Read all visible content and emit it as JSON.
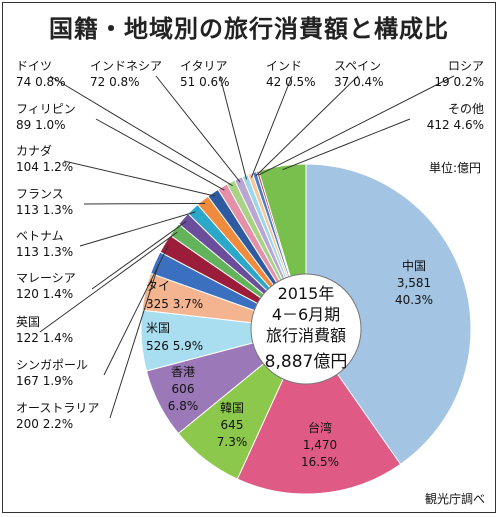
{
  "unit_label": "単位:億円",
  "source_label": "観光庁調べ",
  "chart_data": {
    "type": "pie",
    "title": "国籍・地域別の旅行消費額と構成比",
    "center_text": [
      "2015年",
      "4－6月期",
      "旅行消費額",
      "8,887億円"
    ],
    "slices": [
      {
        "label": "中国",
        "value": 3581,
        "value_text": "3,581",
        "pct_text": "40.3%",
        "color": "#a3c4e3"
      },
      {
        "label": "台湾",
        "value": 1470,
        "value_text": "1,470",
        "pct_text": "16.5%",
        "color": "#e05a86"
      },
      {
        "label": "韓国",
        "value": 645,
        "value_text": "645",
        "pct_text": "7.3%",
        "color": "#8cc84b"
      },
      {
        "label": "香港",
        "value": 606,
        "value_text": "606",
        "pct_text": "6.8%",
        "color": "#9b78b8"
      },
      {
        "label": "米国",
        "value": 526,
        "value_text": "526",
        "pct_text": "5.9%",
        "color": "#a9def1"
      },
      {
        "label": "タイ",
        "value": 325,
        "value_text": "325",
        "pct_text": "3.7%",
        "color": "#f4b48f"
      },
      {
        "label": "オーストラリア",
        "value": 200,
        "value_text": "200",
        "pct_text": "2.2%",
        "color": "#3b6fc0"
      },
      {
        "label": "シンガポール",
        "value": 167,
        "value_text": "167",
        "pct_text": "1.9%",
        "color": "#9c1d3a"
      },
      {
        "label": "英国",
        "value": 122,
        "value_text": "122",
        "pct_text": "1.4%",
        "color": "#63b35a"
      },
      {
        "label": "マレーシア",
        "value": 120,
        "value_text": "120",
        "pct_text": "1.4%",
        "color": "#6a4d9b"
      },
      {
        "label": "ベトナム",
        "value": 113,
        "value_text": "113",
        "pct_text": "1.3%",
        "color": "#2aa7c9"
      },
      {
        "label": "フランス",
        "value": 113,
        "value_text": "113",
        "pct_text": "1.3%",
        "color": "#f08a3c"
      },
      {
        "label": "カナダ",
        "value": 104,
        "value_text": "104",
        "pct_text": "1.2%",
        "color": "#2d5aa0"
      },
      {
        "label": "フィリピン",
        "value": 89,
        "value_text": "89",
        "pct_text": "1.0%",
        "color": "#e58fa9"
      },
      {
        "label": "ドイツ",
        "value": 74,
        "value_text": "74",
        "pct_text": "0.8%",
        "color": "#a8d384"
      },
      {
        "label": "インドネシア",
        "value": 72,
        "value_text": "72",
        "pct_text": "0.8%",
        "color": "#b9a6d3"
      },
      {
        "label": "イタリア",
        "value": 51,
        "value_text": "51",
        "pct_text": "0.6%",
        "color": "#9cd7ec"
      },
      {
        "label": "インド",
        "value": 42,
        "value_text": "42",
        "pct_text": "0.5%",
        "color": "#f6c79e"
      },
      {
        "label": "スペイン",
        "value": 37,
        "value_text": "37",
        "pct_text": "0.4%",
        "color": "#4a7fc8"
      },
      {
        "label": "ロシア",
        "value": 19,
        "value_text": "19",
        "pct_text": "0.2%",
        "color": "#c23b5c"
      },
      {
        "label": "その他",
        "value": 412,
        "value_text": "412",
        "pct_text": "4.6%",
        "color": "#79bf4e"
      }
    ]
  }
}
